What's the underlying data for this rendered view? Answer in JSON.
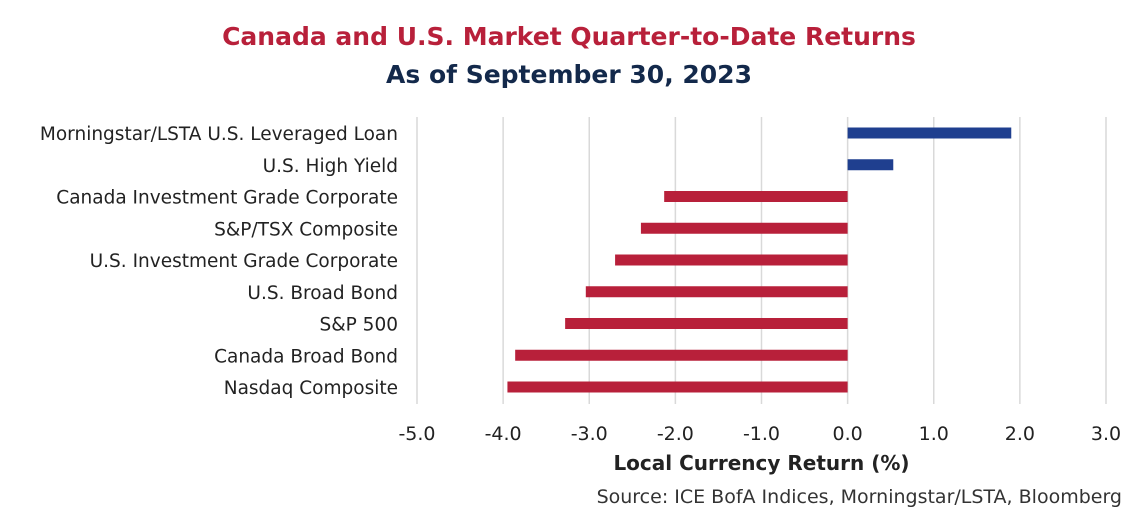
{
  "title": "Canada and U.S. Market Quarter-to-Date Returns",
  "subtitle": "As of September 30, 2023",
  "source": "Source: ICE BofA Indices, Morningstar/LSTA, Bloomberg",
  "colors": {
    "positive": "#1f3f8f",
    "negative": "#b8203a",
    "grid": "#d9d9d9",
    "text": "#222222"
  },
  "chart_data": {
    "type": "bar",
    "orientation": "horizontal",
    "categories": [
      "Morningstar/LSTA U.S. Leveraged Loan",
      "U.S. High Yield",
      "Canada Investment Grade Corporate",
      "S&P/TSX Composite",
      "U.S. Investment Grade Corporate",
      "U.S. Broad Bond",
      "S&P 500",
      "Canada Broad Bond",
      "Nasdaq Composite"
    ],
    "values": [
      1.9,
      0.53,
      -2.13,
      -2.4,
      -2.7,
      -3.04,
      -3.28,
      -3.86,
      -3.95
    ],
    "xlabel": "Local Currency Return (%)",
    "ylabel": "",
    "xlim": [
      -5.0,
      3.0
    ],
    "xticks": [
      "-5.0",
      "-4.0",
      "-3.0",
      "-2.0",
      "-1.0",
      "0.0",
      "1.0",
      "2.0",
      "3.0"
    ],
    "grid": true,
    "legend": "none"
  }
}
